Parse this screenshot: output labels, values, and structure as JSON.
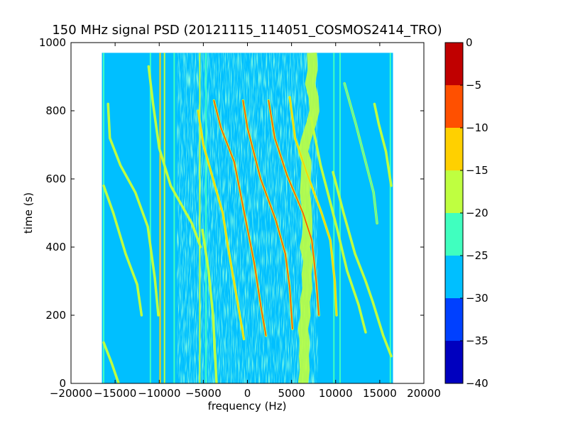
{
  "chart_data": {
    "type": "heatmap",
    "title": "150 MHz signal PSD (20121115_114051_COSMOS2414_TRO)",
    "xlabel": "frequency (Hz)",
    "ylabel": "time (s)",
    "xlim": [
      -20000,
      20000
    ],
    "ylim": [
      0,
      1000
    ],
    "xticks": [
      -20000,
      -15000,
      -10000,
      -5000,
      0,
      5000,
      10000,
      15000,
      20000
    ],
    "xtick_labels": [
      "−20000",
      "−15000",
      "−10000",
      "−5000",
      "0",
      "5000",
      "10000",
      "15000",
      "20000"
    ],
    "yticks": [
      0,
      200,
      400,
      600,
      800,
      1000
    ],
    "ytick_labels": [
      "0",
      "200",
      "400",
      "600",
      "800",
      "1000"
    ],
    "data_extent": {
      "x": [
        -16500,
        16500
      ],
      "y": [
        0,
        970
      ]
    },
    "colorbar": {
      "levels": [
        -40,
        -35,
        -30,
        -25,
        -20,
        -15,
        -10,
        -5,
        0
      ],
      "tick_labels": [
        "−40",
        "−35",
        "−30",
        "−25",
        "−20",
        "−15",
        "−10",
        "−5",
        "0"
      ],
      "colors": [
        "#0000bf",
        "#0040ff",
        "#00bfff",
        "#40ffbf",
        "#bfff40",
        "#ffd000",
        "#ff5000",
        "#c00000"
      ]
    },
    "background_level_db": -27,
    "noise_band": {
      "x": [
        -8000,
        8000
      ],
      "level_db": -22
    },
    "vertical_lines": [
      {
        "x": -16300,
        "level_db": -22
      },
      {
        "x": -11000,
        "level_db": -22
      },
      {
        "x": -9900,
        "level_db": -15
      },
      {
        "x": -9400,
        "level_db": -18
      },
      {
        "x": -8300,
        "level_db": -22
      },
      {
        "x": -5400,
        "level_db": -18
      },
      {
        "x": -4700,
        "level_db": -22
      },
      {
        "x": 9800,
        "level_db": -22
      },
      {
        "x": 10500,
        "level_db": -22
      },
      {
        "x": 16200,
        "level_db": -22
      }
    ],
    "drifting_carriers": [
      {
        "points": [
          [
            -5600,
            800
          ],
          [
            -5000,
            700
          ],
          [
            -3900,
            600
          ],
          [
            -2800,
            500
          ],
          [
            -2200,
            400
          ],
          [
            -1200,
            250
          ],
          [
            -400,
            130
          ]
        ],
        "level_db": -12
      },
      {
        "points": [
          [
            -3800,
            830
          ],
          [
            -3000,
            750
          ],
          [
            -1500,
            650
          ],
          [
            -200,
            480
          ],
          [
            800,
            350
          ],
          [
            1500,
            230
          ],
          [
            2100,
            140
          ]
        ],
        "level_db": -10
      },
      {
        "points": [
          [
            -500,
            830
          ],
          [
            0,
            750
          ],
          [
            1500,
            600
          ],
          [
            3200,
            480
          ],
          [
            4300,
            380
          ],
          [
            4800,
            280
          ],
          [
            5100,
            160
          ]
        ],
        "level_db": -8
      },
      {
        "points": [
          [
            2400,
            830
          ],
          [
            3100,
            720
          ],
          [
            4500,
            610
          ],
          [
            6300,
            500
          ],
          [
            7300,
            420
          ],
          [
            7800,
            300
          ],
          [
            8100,
            200
          ]
        ],
        "level_db": -10
      },
      {
        "points": [
          [
            4800,
            840
          ],
          [
            5400,
            720
          ],
          [
            6700,
            620
          ],
          [
            8400,
            500
          ],
          [
            9400,
            420
          ],
          [
            9900,
            300
          ],
          [
            10100,
            200
          ]
        ],
        "level_db": -15
      },
      {
        "points": [
          [
            -15800,
            820
          ],
          [
            -15600,
            720
          ],
          [
            -14400,
            640
          ],
          [
            -12700,
            560
          ],
          [
            -11300,
            460
          ],
          [
            -10500,
            310
          ],
          [
            -10100,
            200
          ]
        ],
        "level_db": -18
      },
      {
        "points": [
          [
            -16300,
            580
          ],
          [
            -15200,
            500
          ],
          [
            -13800,
            380
          ],
          [
            -12500,
            290
          ],
          [
            -12000,
            200
          ]
        ],
        "level_db": -18
      },
      {
        "points": [
          [
            -16300,
            120
          ],
          [
            -15400,
            60
          ],
          [
            -14600,
            0
          ]
        ],
        "level_db": -20
      },
      {
        "points": [
          [
            -11200,
            930
          ],
          [
            -10700,
            820
          ],
          [
            -10000,
            690
          ],
          [
            -8700,
            580
          ],
          [
            -6300,
            470
          ],
          [
            -5300,
            400
          ]
        ],
        "level_db": -18
      },
      {
        "points": [
          [
            7200,
            780
          ],
          [
            8300,
            640
          ],
          [
            9300,
            540
          ],
          [
            10200,
            450
          ],
          [
            11300,
            330
          ],
          [
            12600,
            230
          ],
          [
            13400,
            150
          ]
        ],
        "level_db": -18
      },
      {
        "points": [
          [
            9700,
            620
          ],
          [
            10900,
            500
          ],
          [
            12200,
            380
          ],
          [
            13400,
            300
          ],
          [
            14200,
            240
          ],
          [
            15400,
            140
          ],
          [
            16300,
            80
          ]
        ],
        "level_db": -18
      },
      {
        "points": [
          [
            14400,
            820
          ],
          [
            14900,
            760
          ],
          [
            15700,
            680
          ],
          [
            16300,
            580
          ]
        ],
        "level_db": -18
      },
      {
        "points": [
          [
            11000,
            880
          ],
          [
            12300,
            760
          ],
          [
            13500,
            640
          ],
          [
            14300,
            560
          ],
          [
            14700,
            470
          ]
        ],
        "level_db": -22
      },
      {
        "points": [
          [
            -5100,
            450
          ],
          [
            -4400,
            330
          ],
          [
            -3900,
            200
          ],
          [
            -3700,
            100
          ],
          [
            -3500,
            0
          ]
        ],
        "level_db": -18
      }
    ],
    "wandering_signal": {
      "points": [
        [
          7300,
          970
        ],
        [
          7400,
          920
        ],
        [
          7100,
          880
        ],
        [
          7500,
          840
        ],
        [
          7600,
          800
        ],
        [
          7200,
          760
        ],
        [
          6700,
          720
        ],
        [
          6300,
          680
        ],
        [
          6700,
          650
        ],
        [
          6600,
          600
        ],
        [
          6500,
          560
        ],
        [
          6700,
          520
        ],
        [
          6800,
          480
        ],
        [
          6800,
          440
        ],
        [
          6500,
          400
        ],
        [
          6900,
          360
        ],
        [
          6700,
          320
        ],
        [
          6800,
          280
        ],
        [
          6500,
          240
        ],
        [
          6600,
          200
        ],
        [
          6300,
          160
        ],
        [
          6500,
          120
        ],
        [
          6400,
          80
        ],
        [
          6500,
          40
        ],
        [
          6300,
          0
        ]
      ],
      "level_db": -17
    }
  }
}
